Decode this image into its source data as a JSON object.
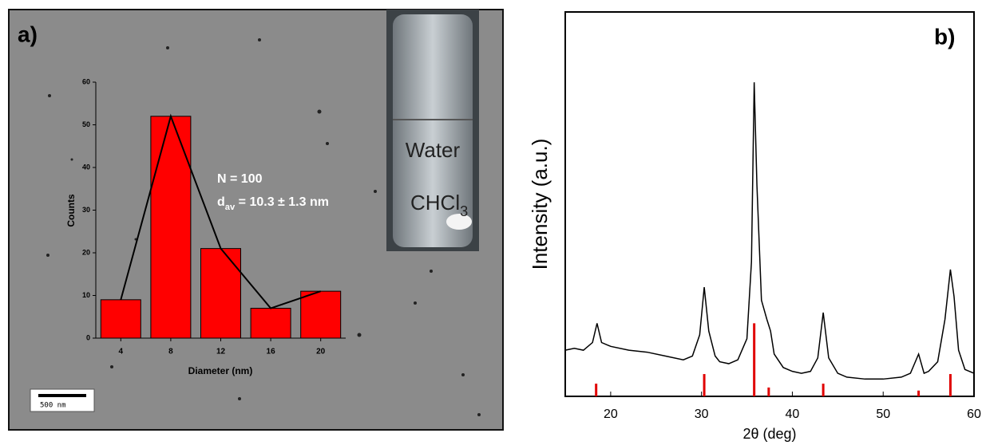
{
  "chart_data": [
    {
      "type": "bar",
      "panel_label": "a)",
      "xlabel": "Diameter (nm)",
      "ylabel": "Counts",
      "categories": [
        "4",
        "8",
        "12",
        "16",
        "20"
      ],
      "values": [
        9,
        52,
        21,
        7,
        11
      ],
      "color": "#ff0000",
      "line_overlay": true,
      "line_color": "#000000",
      "ylim": [
        0,
        60
      ],
      "yticks": [
        0,
        10,
        20,
        30,
        40,
        50,
        60
      ],
      "annotations": {
        "n": "N = 100",
        "dav": {
          "main": "d",
          "sub": "av",
          "rest": " = 10.3 ± 1.3 nm"
        }
      },
      "inset": {
        "top_phase": "Water",
        "bottom_phase": {
          "main": "CHCl",
          "sub": "3"
        }
      },
      "scale_bar": "500 nm"
    },
    {
      "type": "line",
      "panel_label": "b)",
      "xlabel": "2θ (deg)",
      "ylabel": "Intensity (a.u.)",
      "x": [
        15,
        16,
        17,
        18,
        18.5,
        19,
        20,
        22,
        24,
        26,
        28,
        29,
        29.8,
        30.3,
        30.8,
        31.5,
        32,
        33,
        34,
        35,
        35.5,
        35.8,
        36.1,
        36.6,
        37.2,
        37.6,
        38,
        39,
        40,
        41,
        42,
        42.8,
        43.4,
        44,
        45,
        46,
        48,
        50,
        52,
        53,
        53.9,
        54.5,
        55,
        56,
        56.8,
        57.4,
        57.8,
        58.3,
        59,
        60
      ],
      "values": [
        12,
        12.5,
        12,
        14,
        19,
        14,
        13,
        12,
        11.5,
        10.5,
        9.5,
        10.5,
        16,
        28.4,
        17,
        10.5,
        9,
        8.5,
        9.5,
        15,
        35,
        81.7,
        55,
        25,
        20,
        17,
        11,
        7.5,
        6.5,
        6,
        6.5,
        10,
        21.8,
        10,
        6,
        5,
        4.5,
        4.5,
        5,
        6,
        11,
        6,
        6.5,
        9,
        20,
        33,
        26,
        12,
        7,
        6
      ],
      "color": "#000000",
      "reference_x": [
        18.4,
        30.3,
        35.8,
        37.4,
        43.4,
        53.9,
        57.4
      ],
      "reference_values": [
        3.3,
        5.8,
        19,
        2.3,
        3.3,
        1.5,
        5.8
      ],
      "reference_color": "#e00000",
      "xlim": [
        15,
        60
      ],
      "xticks": [
        20,
        30,
        40,
        50,
        60
      ],
      "ylim": [
        0,
        100
      ]
    }
  ]
}
